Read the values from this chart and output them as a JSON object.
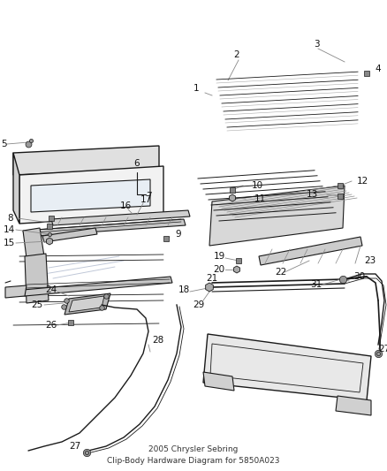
{
  "title": "2005 Chrysler Sebring\nClip-Body Hardware Diagram for 5850A023",
  "background_color": "#ffffff",
  "line_color": "#1a1a1a",
  "fig_width": 4.38,
  "fig_height": 5.33,
  "dpi": 100
}
